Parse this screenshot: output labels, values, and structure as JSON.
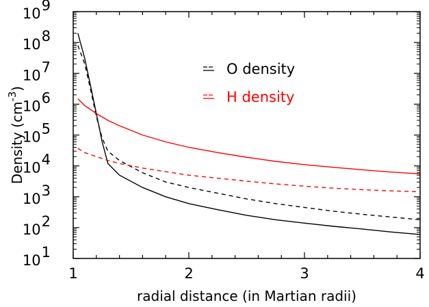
{
  "chart_data": {
    "type": "line",
    "title": "",
    "xlabel": "radial distance (in Martian radii)",
    "ylabel_prefix": "Density (cm",
    "ylabel_exponent": "-3",
    "ylabel_suffix": ")",
    "x_scale": "linear",
    "y_scale": "log",
    "xlim": [
      1,
      4
    ],
    "ylim_exponents": [
      1,
      9
    ],
    "ytick_base": "10",
    "x_ticks": [
      1,
      2,
      3,
      4
    ],
    "y_tick_exponents": [
      1,
      2,
      3,
      4,
      5,
      6,
      7,
      8,
      9
    ],
    "grid": false,
    "legend_placement": "upper-center",
    "series": [
      {
        "name": "O density",
        "color": "#000000",
        "dash": "solid",
        "points": [
          [
            1.04,
            200000000.0
          ],
          [
            1.1,
            30000000.0
          ],
          [
            1.15,
            4000000.0
          ],
          [
            1.2,
            500000.0
          ],
          [
            1.25,
            60000.0
          ],
          [
            1.3,
            12000.0
          ],
          [
            1.4,
            5000.0
          ],
          [
            1.6,
            2000.0
          ],
          [
            1.8,
            1000.0
          ],
          [
            2.0,
            600.0
          ],
          [
            2.25,
            380.0
          ],
          [
            2.5,
            250.0
          ],
          [
            2.75,
            180.0
          ],
          [
            3.0,
            140.0
          ],
          [
            3.25,
            110.0
          ],
          [
            3.5,
            90.0
          ],
          [
            3.75,
            72.0
          ],
          [
            4.0,
            60.0
          ]
        ]
      },
      {
        "name": "O density",
        "color": "#000000",
        "dash": "dashed",
        "points": [
          [
            1.04,
            80000000.0
          ],
          [
            1.1,
            20000000.0
          ],
          [
            1.15,
            3000000.0
          ],
          [
            1.2,
            400000.0
          ],
          [
            1.25,
            80000.0
          ],
          [
            1.3,
            30000.0
          ],
          [
            1.4,
            15000.0
          ],
          [
            1.6,
            6000.0
          ],
          [
            1.8,
            3000.0
          ],
          [
            2.0,
            2000.0
          ],
          [
            2.25,
            1300.0
          ],
          [
            2.5,
            850.0
          ],
          [
            2.75,
            600.0
          ],
          [
            3.0,
            450.0
          ],
          [
            3.25,
            340.0
          ],
          [
            3.5,
            270.0
          ],
          [
            3.75,
            220.0
          ],
          [
            4.0,
            180.0
          ]
        ]
      },
      {
        "name": "H density",
        "color": "#ff0000",
        "dash": "solid",
        "points": [
          [
            1.04,
            1500000.0
          ],
          [
            1.1,
            900000.0
          ],
          [
            1.2,
            500000.0
          ],
          [
            1.3,
            300000.0
          ],
          [
            1.4,
            200000.0
          ],
          [
            1.6,
            100000.0
          ],
          [
            1.8,
            60000.0
          ],
          [
            2.0,
            40000.0
          ],
          [
            2.25,
            27000.0
          ],
          [
            2.5,
            19000.0
          ],
          [
            2.75,
            14000.0
          ],
          [
            3.0,
            11000.0
          ],
          [
            3.25,
            9000.0
          ],
          [
            3.5,
            7500.0
          ],
          [
            3.75,
            6300.0
          ],
          [
            4.0,
            5500.0
          ]
        ]
      },
      {
        "name": "H density",
        "color": "#ff0000",
        "dash": "dashed",
        "points": [
          [
            1.04,
            37000.0
          ],
          [
            1.1,
            27000.0
          ],
          [
            1.2,
            20000.0
          ],
          [
            1.3,
            15000.0
          ],
          [
            1.4,
            12000.0
          ],
          [
            1.6,
            8500.0
          ],
          [
            1.8,
            6500.0
          ],
          [
            2.0,
            5000.0
          ],
          [
            2.25,
            4000.0
          ],
          [
            2.5,
            3200.0
          ],
          [
            2.75,
            2600.0
          ],
          [
            3.0,
            2200.0
          ],
          [
            3.25,
            1900.0
          ],
          [
            3.5,
            1700.0
          ],
          [
            3.75,
            1550.0
          ],
          [
            4.0,
            1450.0
          ]
        ]
      }
    ],
    "legend": [
      {
        "label": "O density",
        "color": "#000000"
      },
      {
        "label": "H density",
        "color": "#ff0000"
      }
    ]
  }
}
